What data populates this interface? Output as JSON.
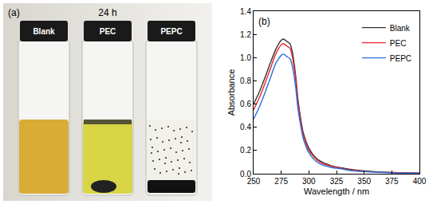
{
  "photo": {
    "panel_label": "(a)",
    "caption": "24 h",
    "samples": [
      "Blank",
      "PEC",
      "PEPC"
    ]
  },
  "chart_data": {
    "type": "line",
    "annotations": [
      "(b)"
    ],
    "x_label": "Wavelength / nm",
    "y_label": "Absorbance",
    "x": [
      250,
      255,
      260,
      265,
      270,
      275,
      277,
      280,
      283,
      285,
      288,
      290,
      293,
      295,
      300,
      305,
      310,
      320,
      330,
      340,
      350,
      375,
      400
    ],
    "series": [
      {
        "name": "Blank",
        "color": "#333333",
        "values": [
          0.6,
          0.7,
          0.82,
          0.95,
          1.07,
          1.15,
          1.16,
          1.14,
          1.12,
          1.05,
          0.85,
          0.65,
          0.45,
          0.35,
          0.22,
          0.15,
          0.11,
          0.07,
          0.05,
          0.035,
          0.025,
          0.01,
          0.005
        ]
      },
      {
        "name": "PEC",
        "color": "#e8262b",
        "values": [
          0.55,
          0.65,
          0.77,
          0.9,
          1.03,
          1.11,
          1.12,
          1.1,
          1.08,
          1.01,
          0.82,
          0.62,
          0.43,
          0.33,
          0.2,
          0.14,
          0.1,
          0.065,
          0.045,
          0.03,
          0.02,
          0.01,
          0.005
        ]
      },
      {
        "name": "PEPC",
        "color": "#2a6fdb",
        "values": [
          0.47,
          0.57,
          0.69,
          0.82,
          0.95,
          1.02,
          1.03,
          1.01,
          0.99,
          0.93,
          0.75,
          0.57,
          0.39,
          0.3,
          0.18,
          0.12,
          0.085,
          0.055,
          0.04,
          0.025,
          0.018,
          0.008,
          0.004
        ]
      }
    ],
    "xlim": [
      250,
      400
    ],
    "xticks": [
      250,
      275,
      300,
      325,
      350,
      375,
      400
    ],
    "ylim": [
      0,
      1.4
    ],
    "yticks": [
      {
        "value": 0,
        "label": "0.0"
      },
      0.2,
      0.4,
      0.6,
      0.8,
      {
        "value": 1,
        "label": "1.0"
      },
      1.2,
      1.4
    ],
    "legend": "upper right",
    "grid": false
  }
}
